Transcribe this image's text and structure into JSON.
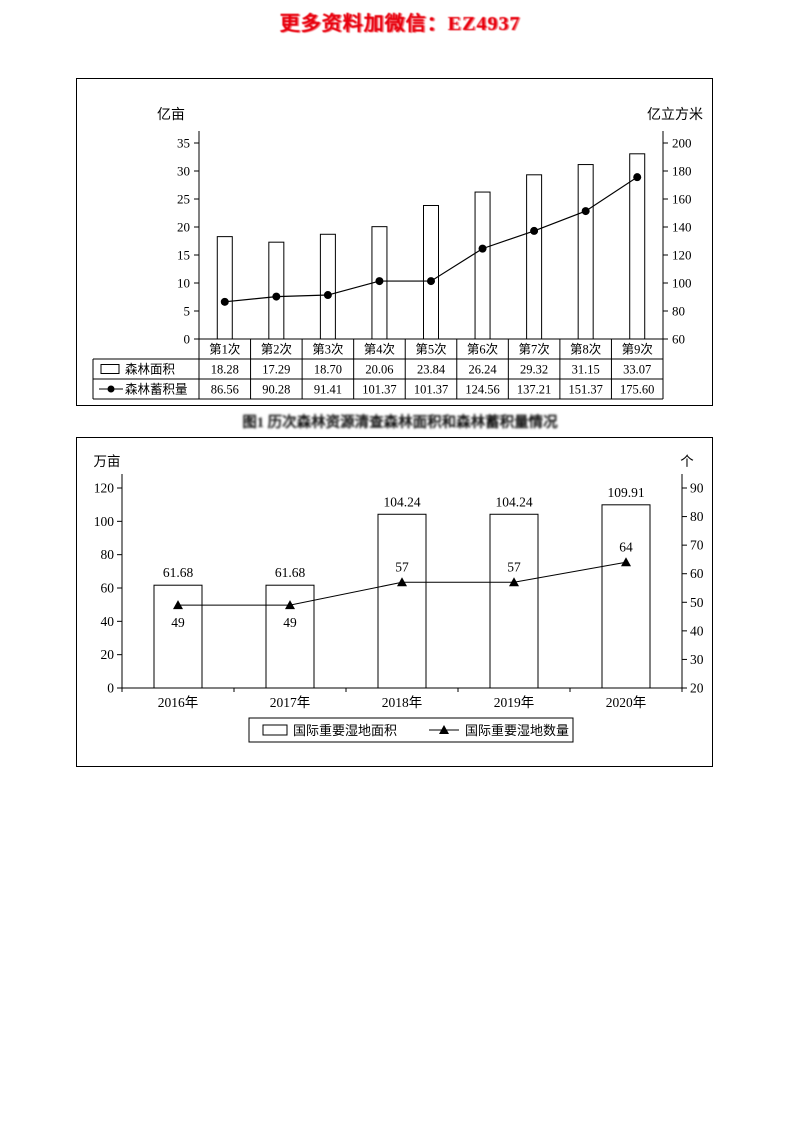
{
  "page": {
    "header": "更多资料加微信：EZ4937",
    "caption1": "图1 历次森林资源清查森林面积和森林蓄积量情况",
    "colors": {
      "watermark_red": "#e8000d",
      "ink": "#000000",
      "bar_fill": "#ffffff"
    }
  },
  "chart_data": [
    {
      "type": "bar+line",
      "title": "",
      "grid": false,
      "legend_position": "table-left",
      "left_axis": {
        "label": "亿亩",
        "min": 0,
        "max": 35,
        "step": 5
      },
      "right_axis": {
        "label": "亿立方米",
        "min": 60,
        "max": 200,
        "step": 20
      },
      "categories": [
        "第1次",
        "第2次",
        "第3次",
        "第4次",
        "第5次",
        "第6次",
        "第7次",
        "第8次",
        "第9次"
      ],
      "series": [
        {
          "name": "森林面积",
          "type": "bar",
          "marker": "rect",
          "axis": "left",
          "decimals": 2,
          "values": [
            18.28,
            17.29,
            18.7,
            20.06,
            23.84,
            26.24,
            29.32,
            31.15,
            33.07
          ]
        },
        {
          "name": "森林蓄积量",
          "type": "line",
          "marker": "circle",
          "axis": "right",
          "decimals": 2,
          "values": [
            86.56,
            90.28,
            91.41,
            101.37,
            101.37,
            124.56,
            137.21,
            151.37,
            175.6
          ]
        }
      ]
    },
    {
      "type": "bar+line",
      "title": "",
      "grid": false,
      "legend_position": "bottom",
      "left_axis": {
        "label": "万亩",
        "min": 0,
        "max": 120,
        "step": 20
      },
      "right_axis": {
        "label": "个",
        "min": 20,
        "max": 90,
        "step": 10
      },
      "categories": [
        "2016年",
        "2017年",
        "2018年",
        "2019年",
        "2020年"
      ],
      "series": [
        {
          "name": "国际重要湿地面积",
          "type": "bar",
          "marker": "rect",
          "axis": "left",
          "decimals": 2,
          "values": [
            61.68,
            61.68,
            104.24,
            104.24,
            109.91
          ]
        },
        {
          "name": "国际重要湿地数量",
          "type": "line",
          "marker": "triangle",
          "axis": "right",
          "decimals": 0,
          "values": [
            49,
            49,
            57,
            57,
            64
          ]
        }
      ]
    }
  ]
}
